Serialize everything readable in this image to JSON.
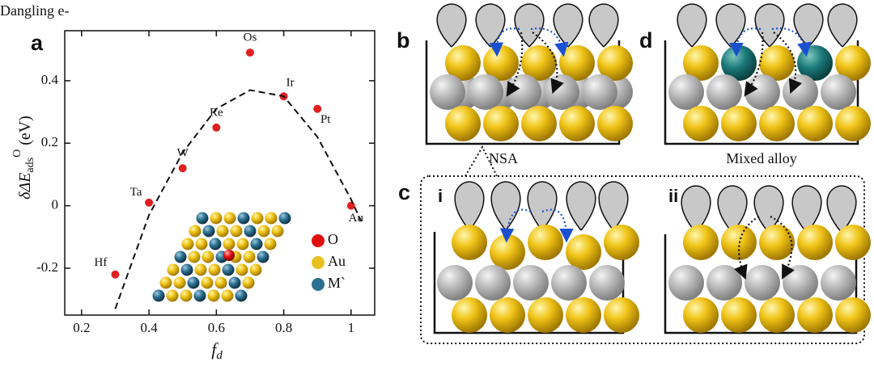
{
  "chart_data": {
    "type": "scatter",
    "xlabel": "f",
    "xlabel_sub": "d",
    "ylabel": "δΔE",
    "ylabel_sub": "ads",
    "ylabel_sup": "O",
    "ylabel_unit": " (eV)",
    "xlim": [
      0.15,
      1.07
    ],
    "ylim": [
      -0.35,
      0.56
    ],
    "xticks": [
      0.2,
      0.4,
      0.6,
      0.8,
      1.0
    ],
    "yticks": [
      -0.2,
      0,
      0.2,
      0.4
    ],
    "series": [
      {
        "color": "#e02020",
        "x": [
          0.3,
          0.4,
          0.5,
          0.6,
          0.7,
          0.8,
          0.9,
          1.0
        ],
        "values": [
          -0.22,
          0.01,
          0.12,
          0.25,
          0.49,
          0.35,
          0.31,
          0.0
        ],
        "labels": [
          "Hf",
          "Ta",
          "W",
          "Re",
          "Os",
          "Ir",
          "Pt",
          "Au"
        ]
      },
      {
        "type": "line",
        "color": "#111",
        "x": [
          0.3,
          0.4,
          0.5,
          0.6,
          0.7,
          0.8,
          0.9,
          1.0,
          1.03
        ],
        "values": [
          -0.33,
          -0.03,
          0.17,
          0.31,
          0.37,
          0.35,
          0.22,
          0.02,
          -0.05
        ]
      }
    ],
    "legend": [
      {
        "name": "O",
        "color": "#e01010"
      },
      {
        "name": "Au",
        "color": "#e8c020"
      },
      {
        "name": "M`",
        "color": "#2a7090"
      }
    ]
  },
  "diagram": {
    "top_label": "Dangling e-",
    "panels": {
      "a": "a",
      "b": "b",
      "c": "c",
      "d": "d",
      "ci": "i",
      "cii": "ii"
    },
    "captions": {
      "b": "NSA",
      "d": "Mixed alloy"
    }
  }
}
